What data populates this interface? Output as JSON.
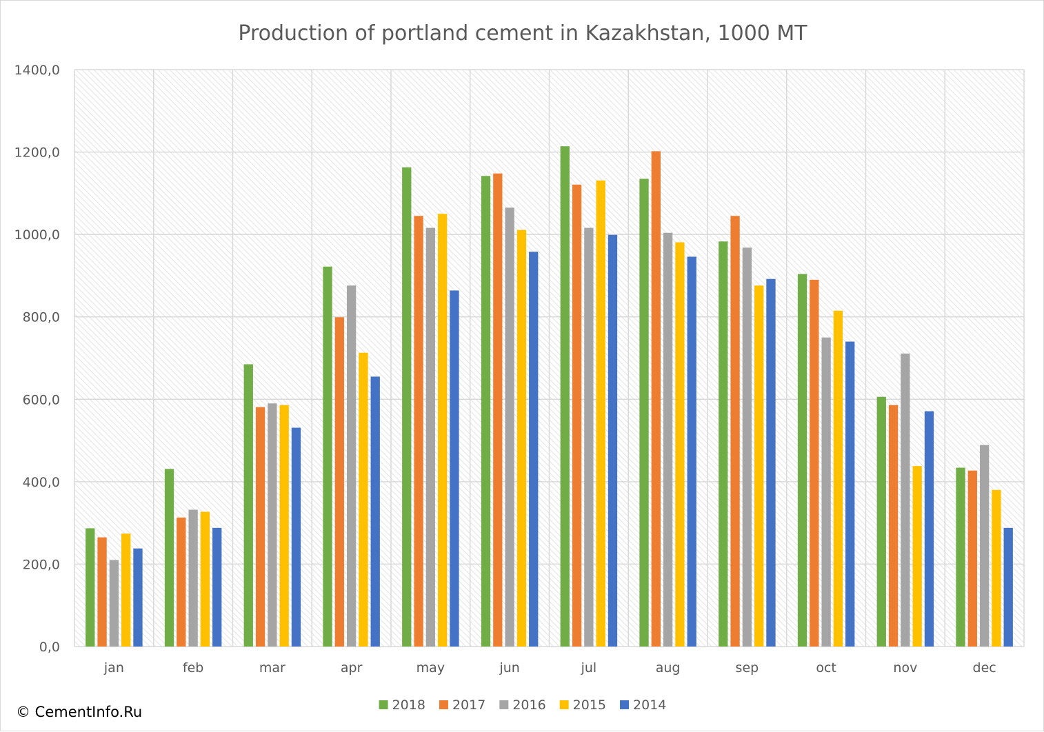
{
  "chart_data": {
    "type": "bar",
    "title": "Production of portland cement in Kazakhstan, 1000 MT",
    "xlabel": "",
    "ylabel": "",
    "ylim": [
      0,
      1400
    ],
    "ytick_step": 200,
    "ytick_labels": [
      "0,0",
      "200,0",
      "400,0",
      "600,0",
      "800,0",
      "1000,0",
      "1200,0",
      "1400,0"
    ],
    "grid": true,
    "legend_position": "bottom",
    "categories": [
      "jan",
      "feb",
      "mar",
      "apr",
      "may",
      "jun",
      "jul",
      "aug",
      "sep",
      "oct",
      "nov",
      "dec"
    ],
    "series": [
      {
        "name": "2018",
        "color": "#70ad47",
        "values": [
          287,
          431,
          685,
          922,
          1163,
          1142,
          1214,
          1135,
          983,
          904,
          606,
          434
        ]
      },
      {
        "name": "2017",
        "color": "#ed7d31",
        "values": [
          265,
          313,
          581,
          799,
          1045,
          1148,
          1121,
          1202,
          1045,
          890,
          586,
          427
        ]
      },
      {
        "name": "2016",
        "color": "#a5a5a5",
        "values": [
          210,
          332,
          590,
          876,
          1016,
          1065,
          1016,
          1004,
          968,
          750,
          711,
          489
        ]
      },
      {
        "name": "2015",
        "color": "#ffc000",
        "values": [
          274,
          327,
          586,
          713,
          1050,
          1011,
          1131,
          981,
          876,
          815,
          438,
          380
        ]
      },
      {
        "name": "2014",
        "color": "#4472c4",
        "values": [
          238,
          288,
          531,
          655,
          864,
          958,
          999,
          946,
          892,
          740,
          571,
          288
        ]
      }
    ]
  },
  "footer": {
    "copyright": "© CementInfo.Ru"
  }
}
